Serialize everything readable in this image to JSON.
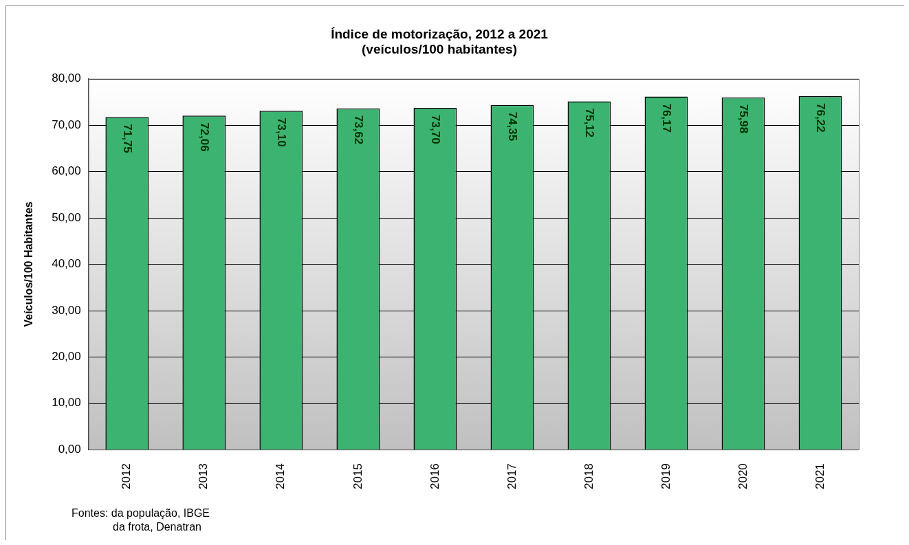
{
  "chart_data": {
    "type": "bar",
    "title": [
      "Índice de motorização, 2012 a 2021",
      "(veículos/100 habitantes)"
    ],
    "ylabel": "Veículos/100 Habitantes",
    "categories": [
      "2012",
      "2013",
      "2014",
      "2015",
      "2016",
      "2017",
      "2018",
      "2019",
      "2020",
      "2021"
    ],
    "values": [
      71.75,
      72.06,
      73.1,
      73.62,
      73.7,
      74.35,
      75.12,
      76.17,
      75.98,
      76.22
    ],
    "value_labels": [
      "71,75",
      "72,06",
      "73,10",
      "73,62",
      "73,70",
      "74,35",
      "75,12",
      "76,17",
      "75,98",
      "76,22"
    ],
    "color": "#3cb371",
    "ylim": [
      0,
      80
    ],
    "yticks": [
      {
        "value": 0,
        "label": "0,00"
      },
      {
        "value": 10,
        "label": "10,00"
      },
      {
        "value": 20,
        "label": "20,00"
      },
      {
        "value": 30,
        "label": "30,00"
      },
      {
        "value": 40,
        "label": "40,00"
      },
      {
        "value": 50,
        "label": "50,00"
      },
      {
        "value": 60,
        "label": "60,00"
      },
      {
        "value": 70,
        "label": "70,00"
      },
      {
        "value": 80,
        "label": "80,00"
      }
    ],
    "grid": "y",
    "legend": false,
    "annotations": [
      "Fontes:  da população, IBGE",
      "da frota, Denatran"
    ]
  }
}
